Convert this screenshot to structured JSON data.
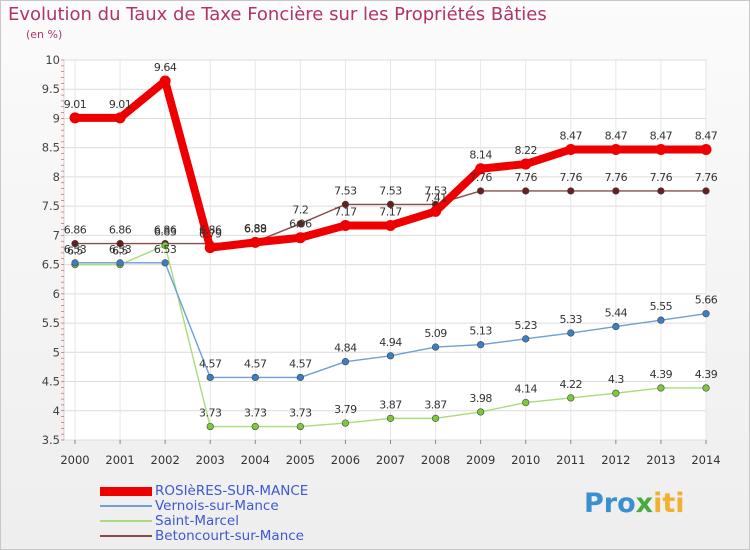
{
  "title": "Evolution du Taux de Taxe Foncière sur les Propriétés Bâties",
  "unit_label": "(en %)",
  "brand": {
    "part1": "Pro",
    "part2": "x",
    "part3": "iti"
  },
  "chart_data": {
    "type": "line",
    "title": "Evolution du Taux de Taxe Foncière sur les Propriétés Bâties",
    "ylabel": "(en %)",
    "xlabel": "",
    "ylim": [
      3.5,
      10
    ],
    "yticks": [
      "3.5",
      "4",
      "4.5",
      "5",
      "5.5",
      "6",
      "6.5",
      "7",
      "7.5",
      "8",
      "8.5",
      "9",
      "9.5",
      "10"
    ],
    "categories": [
      "2000",
      "2001",
      "2002",
      "2003",
      "2004",
      "2005",
      "2006",
      "2007",
      "2008",
      "2009",
      "2010",
      "2011",
      "2012",
      "2013",
      "2014"
    ],
    "series": [
      {
        "name": "ROSIèRES-SUR-MANCE",
        "color": "#ee0000",
        "marker": "#ee0000",
        "width": 8,
        "values": [
          9.01,
          9.01,
          9.64,
          6.79,
          6.88,
          6.96,
          7.17,
          7.17,
          7.41,
          8.14,
          8.22,
          8.47,
          8.47,
          8.47,
          8.47
        ],
        "labels": [
          "9.01",
          "9.01",
          "9.64",
          "6.79",
          "6.88",
          "6.96",
          "7.17",
          "7.17",
          "7.41",
          "8.14",
          "8.22",
          "8.47",
          "8.47",
          "8.47",
          "8.47"
        ],
        "label_pos": "above"
      },
      {
        "name": "Vernois-sur-Mance",
        "color": "#6f9fd3",
        "marker": "#3a7fc4",
        "width": 1.4,
        "values": [
          6.53,
          6.53,
          6.53,
          4.57,
          4.57,
          4.57,
          4.84,
          4.94,
          5.09,
          5.13,
          5.23,
          5.33,
          5.44,
          5.55,
          5.66
        ],
        "labels": [
          "6.53",
          "6.53",
          "6.53",
          "4.57",
          "4.57",
          "4.57",
          "4.84",
          "4.94",
          "5.09",
          "5.13",
          "5.23",
          "5.33",
          "5.44",
          "5.55",
          "5.66"
        ],
        "label_pos": "above"
      },
      {
        "name": "Saint-Marcel",
        "color": "#a9dd7a",
        "marker": "#7ec93a",
        "width": 1.4,
        "values": [
          6.5,
          6.5,
          6.83,
          3.73,
          3.73,
          3.73,
          3.79,
          3.87,
          3.87,
          3.98,
          4.14,
          4.22,
          4.3,
          4.39,
          4.39
        ],
        "labels": [
          "6.5",
          "6.5",
          "6.83",
          "3.73",
          "3.73",
          "3.73",
          "3.79",
          "3.87",
          "3.87",
          "3.98",
          "4.14",
          "4.22",
          "4.3",
          "4.39",
          "4.39"
        ],
        "label_pos": "above"
      },
      {
        "name": "Betoncourt-sur-Mance",
        "color": "#8a4a4a",
        "marker": "#6a1f1f",
        "width": 1.4,
        "values": [
          6.86,
          6.86,
          6.86,
          6.86,
          6.89,
          7.2,
          7.53,
          7.53,
          7.53,
          7.76,
          7.76,
          7.76,
          7.76,
          7.76,
          7.76
        ],
        "labels": [
          "6.86",
          "6.86",
          "6.86",
          "6.86",
          "6.89",
          "7.2",
          "7.53",
          "7.53",
          "7.53",
          "7.76",
          "7.76",
          "7.76",
          "7.76",
          "7.76",
          "7.76"
        ],
        "label_pos": "above"
      }
    ]
  }
}
